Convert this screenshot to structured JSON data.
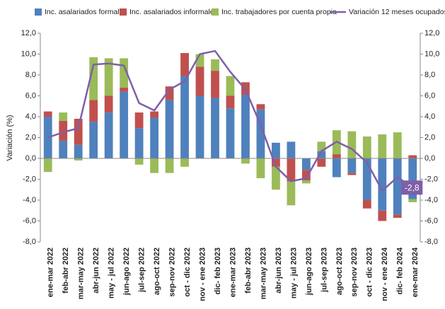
{
  "chart_data": {
    "type": "bar",
    "y_label": "Variación (%)",
    "categories": [
      "ene-mar 2022",
      "feb-abr 2022",
      "mar-may 2022",
      "abr-jun 2022",
      "may - jul 2022",
      "jun-ago 2022",
      "jul-sep 2022",
      "ago-oct 2022",
      "sep-nov 2022",
      "oct - dic 2022",
      "nov - ene 2023",
      "dic- feb 2023",
      "ene-mar 2023",
      "feb-abr 2023",
      "mar-may 2023",
      "abr-jun 2023",
      "may - jul 2023",
      "jun-ago 2023",
      "jul-sep 2023",
      "ago-oct 2023",
      "sep-nov 2023",
      "oct - dic 2023",
      "nov - ene 2024",
      "dic- feb 2024",
      "ene-mar 2024"
    ],
    "series": [
      {
        "name": "Inc. asalariados formales",
        "color": "#4f81bd",
        "values": [
          4.0,
          1.7,
          1.3,
          3.5,
          4.4,
          6.4,
          2.9,
          3.9,
          5.6,
          7.9,
          6.0,
          5.8,
          4.8,
          6.1,
          4.7,
          1.5,
          1.6,
          -1.1,
          0.7,
          -1.8,
          -1.4,
          -4.0,
          -5.0,
          -5.4,
          -3.9
        ]
      },
      {
        "name": "Inc. asalariados informales",
        "color": "#c0504d",
        "values": [
          0.5,
          1.9,
          2.5,
          2.1,
          1.6,
          0.4,
          1.5,
          0.6,
          1.3,
          2.2,
          2.8,
          2.6,
          1.2,
          1.2,
          0.5,
          -0.8,
          -2.2,
          -1.0,
          -0.8,
          0.4,
          -0.2,
          -0.8,
          -1.0,
          -0.3,
          0.3
        ]
      },
      {
        "name": "Inc. trabajadores por cuenta propia",
        "color": "#9bbb59",
        "values": [
          -1.3,
          0.8,
          -0.2,
          4.1,
          3.6,
          2.8,
          -0.6,
          -1.4,
          -1.4,
          -0.8,
          1.2,
          1.1,
          1.9,
          -0.5,
          -1.9,
          -2.2,
          -2.3,
          -0.3,
          0.9,
          2.3,
          2.6,
          2.1,
          2.3,
          2.5,
          -0.3
        ]
      },
      {
        "name": "Variación 12 meses ocupados",
        "color": "#7f5fa8",
        "type": "line",
        "axis": "y2",
        "values": [
          2.0,
          2.5,
          2.9,
          9.0,
          9.1,
          8.9,
          5.3,
          4.6,
          6.6,
          7.4,
          10.0,
          10.3,
          8.3,
          6.6,
          3.2,
          -0.8,
          -2.2,
          -1.9,
          0.7,
          1.6,
          0.9,
          -0.4,
          -3.1,
          -1.8,
          -2.8
        ],
        "value_labels": [
          null,
          null,
          null,
          null,
          null,
          null,
          null,
          null,
          null,
          null,
          null,
          null,
          null,
          null,
          null,
          null,
          null,
          null,
          null,
          null,
          null,
          null,
          null,
          null,
          "-2,8"
        ]
      }
    ],
    "ylim": [
      -8,
      12
    ],
    "yticks": [
      {
        "value": 12,
        "label": "12,0"
      },
      {
        "value": 10,
        "label": "10,0"
      },
      {
        "value": 8,
        "label": "8,0"
      },
      {
        "value": 6,
        "label": "6,0"
      },
      {
        "value": 4,
        "label": "4,0"
      },
      {
        "value": 2,
        "label": "2,0"
      },
      {
        "value": 0,
        "label": "0,0"
      },
      {
        "value": -2,
        "label": "-2,0"
      },
      {
        "value": -4,
        "label": "-4,0"
      },
      {
        "value": -6,
        "label": "-6,0"
      },
      {
        "value": -8,
        "label": "-8,0"
      }
    ],
    "y2lim": [
      -8,
      12
    ],
    "y2ticks": [
      {
        "value": 12,
        "label": "12,0"
      },
      {
        "value": 10,
        "label": "10,0"
      },
      {
        "value": 8,
        "label": "8,0"
      },
      {
        "value": 6,
        "label": "6,0"
      },
      {
        "value": 4,
        "label": "4,0"
      },
      {
        "value": 2,
        "label": "2,0"
      },
      {
        "value": 0,
        "label": "0,0"
      },
      {
        "value": -2,
        "label": "-2,0"
      },
      {
        "value": -4,
        "label": "-4,0"
      },
      {
        "value": -6,
        "label": "-6,0"
      },
      {
        "value": -8,
        "label": "-8,0"
      }
    ]
  }
}
